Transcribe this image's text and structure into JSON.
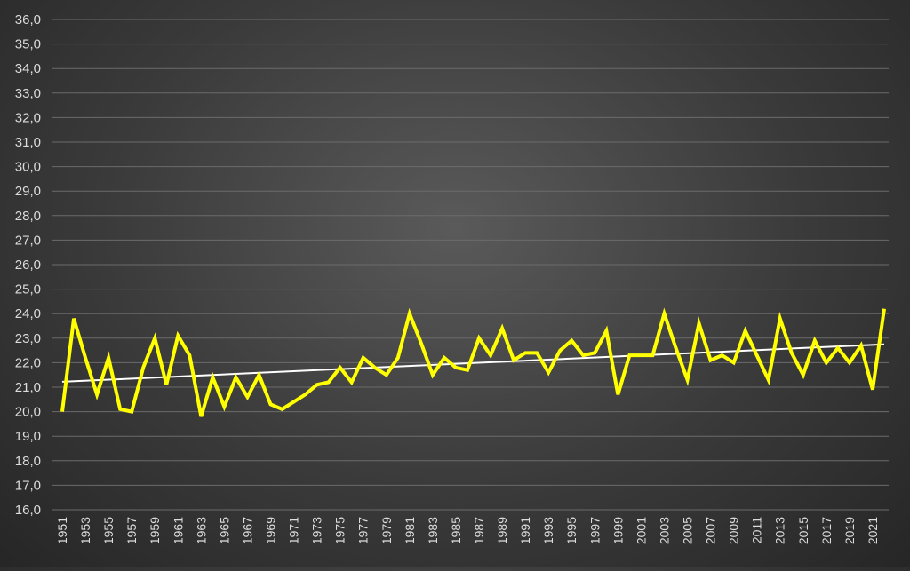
{
  "chart_data": {
    "type": "line",
    "title": "",
    "xlabel": "",
    "ylabel": "",
    "ylim": [
      16,
      36
    ],
    "y_tick_step": 1,
    "y_tick_format": "comma-1-decimal",
    "grid": true,
    "legend": "none",
    "x": [
      1951,
      1952,
      1953,
      1954,
      1955,
      1956,
      1957,
      1958,
      1959,
      1960,
      1961,
      1962,
      1963,
      1964,
      1965,
      1966,
      1967,
      1968,
      1969,
      1970,
      1971,
      1972,
      1973,
      1974,
      1975,
      1976,
      1977,
      1978,
      1979,
      1980,
      1981,
      1982,
      1983,
      1984,
      1985,
      1986,
      1987,
      1988,
      1989,
      1990,
      1991,
      1992,
      1993,
      1994,
      1995,
      1996,
      1997,
      1998,
      1999,
      2000,
      2001,
      2002,
      2003,
      2004,
      2005,
      2006,
      2007,
      2008,
      2009,
      2010,
      2011,
      2012,
      2013,
      2014,
      2015,
      2016,
      2017,
      2018,
      2019,
      2020,
      2021,
      2022
    ],
    "x_tick_labels": [
      "1951",
      "1953",
      "1955",
      "1957",
      "1959",
      "1961",
      "1963",
      "1965",
      "1967",
      "1969",
      "1971",
      "1973",
      "1975",
      "1977",
      "1979",
      "1981",
      "1983",
      "1985",
      "1987",
      "1989",
      "1991",
      "1993",
      "1995",
      "1997",
      "1999",
      "2001",
      "2003",
      "2005",
      "2007",
      "2009",
      "2011",
      "2013",
      "2015",
      "2017",
      "2019",
      "2021"
    ],
    "series": [
      {
        "values": [
          20.0,
          23.8,
          22.2,
          20.7,
          22.2,
          20.1,
          20.0,
          21.8,
          23.0,
          21.1,
          23.1,
          22.3,
          19.8,
          21.4,
          20.2,
          21.4,
          20.6,
          21.5,
          20.3,
          20.1,
          20.4,
          20.7,
          21.1,
          21.2,
          21.8,
          21.2,
          22.2,
          21.8,
          21.5,
          22.2,
          24.0,
          22.8,
          21.5,
          22.2,
          21.8,
          21.7,
          23.0,
          22.3,
          23.4,
          22.1,
          22.4,
          22.4,
          21.6,
          22.5,
          22.9,
          22.3,
          22.4,
          23.3,
          20.7,
          22.3,
          22.3,
          22.3,
          24.0,
          22.6,
          21.3,
          23.6,
          22.1,
          22.3,
          22.0,
          23.3,
          22.3,
          21.3,
          23.8,
          22.4,
          21.5,
          22.9,
          22.0,
          22.6,
          22.0,
          22.7,
          20.9,
          24.2
        ],
        "color": "#ffff00"
      }
    ],
    "trendline": {
      "from": [
        1951,
        21.22
      ],
      "to": [
        2022,
        22.75
      ],
      "color": "#ffffff"
    },
    "colors": {
      "gridline": "#6b6b6b",
      "tick_label": "#dcdcdc"
    }
  }
}
